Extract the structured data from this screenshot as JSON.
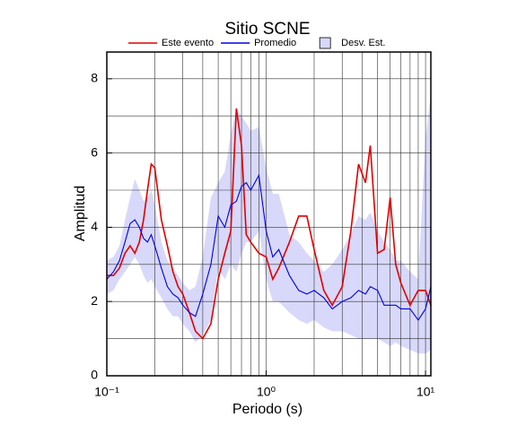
{
  "chart_data": {
    "type": "line",
    "title": "Sitio SCNE",
    "x_label": "Periodo (s)",
    "y_label": "Amplitud",
    "xscale": "log",
    "grid": true,
    "xlim": [
      0.1,
      10.8
    ],
    "ylim": [
      0,
      8.72
    ],
    "xticks": [
      {
        "value": 0.1,
        "label": "10⁻¹"
      },
      {
        "value": 1,
        "label": "10⁰"
      },
      {
        "value": 10,
        "label": "10¹"
      }
    ],
    "xminor": [
      0.2,
      0.3,
      0.4,
      0.5,
      0.6,
      0.7,
      0.8,
      0.9,
      2,
      3,
      4,
      5,
      6,
      7,
      8,
      9
    ],
    "yticks": [
      0,
      2,
      4,
      6,
      8
    ],
    "yminor": [
      1,
      3,
      5,
      7
    ],
    "x": [
      0.1,
      0.11,
      0.12,
      0.13,
      0.14,
      0.15,
      0.16,
      0.17,
      0.18,
      0.19,
      0.2,
      0.22,
      0.24,
      0.26,
      0.28,
      0.3,
      0.33,
      0.36,
      0.4,
      0.45,
      0.5,
      0.55,
      0.6,
      0.65,
      0.7,
      0.75,
      0.8,
      0.9,
      1.0,
      1.1,
      1.2,
      1.4,
      1.6,
      1.8,
      2.0,
      2.3,
      2.6,
      3.0,
      3.4,
      3.8,
      4.2,
      4.5,
      5.0,
      5.5,
      6.0,
      6.5,
      7.0,
      8.0,
      9.0,
      10.0,
      10.8
    ],
    "series": [
      {
        "name": "Este evento",
        "color": "#e00000",
        "values": [
          2.7,
          2.7,
          2.9,
          3.3,
          3.5,
          3.3,
          3.6,
          4.2,
          5.0,
          5.7,
          5.6,
          4.2,
          3.5,
          2.8,
          2.4,
          2.2,
          1.7,
          1.2,
          1.0,
          1.4,
          2.6,
          3.3,
          3.9,
          7.2,
          6.2,
          3.8,
          3.6,
          3.3,
          3.2,
          2.6,
          2.9,
          3.6,
          4.3,
          4.3,
          3.4,
          2.3,
          1.9,
          2.4,
          3.9,
          5.7,
          5.2,
          6.2,
          3.3,
          3.4,
          4.8,
          3.0,
          2.5,
          1.9,
          2.3,
          2.3,
          1.9
        ]
      },
      {
        "name": "Promedio",
        "color": "#0000dd",
        "values": [
          2.6,
          2.8,
          3.1,
          3.6,
          4.1,
          4.2,
          4.0,
          3.7,
          3.6,
          3.8,
          3.5,
          2.9,
          2.4,
          2.2,
          2.1,
          1.9,
          1.7,
          1.6,
          2.2,
          3.0,
          4.3,
          4.0,
          4.6,
          4.7,
          5.1,
          5.2,
          5.0,
          5.4,
          3.9,
          3.2,
          3.4,
          2.7,
          2.3,
          2.2,
          2.3,
          2.1,
          1.8,
          2.0,
          2.1,
          2.3,
          2.2,
          2.4,
          2.3,
          1.9,
          1.9,
          1.9,
          1.8,
          1.8,
          1.5,
          1.8,
          2.4
        ]
      },
      {
        "name": "Desv. Est.",
        "type": "band",
        "color": "#d8d8fa",
        "upper": [
          3.1,
          3.2,
          3.5,
          4.2,
          4.8,
          5.3,
          5.0,
          4.7,
          4.8,
          5.0,
          4.6,
          3.6,
          3.1,
          2.9,
          2.7,
          2.5,
          2.3,
          2.4,
          3.2,
          4.8,
          5.2,
          5.5,
          6.5,
          7.2,
          7.0,
          6.8,
          6.6,
          6.7,
          5.6,
          4.9,
          4.9,
          3.8,
          3.6,
          3.3,
          3.1,
          2.8,
          3.0,
          3.4,
          3.8,
          4.3,
          4.2,
          4.4,
          3.9,
          3.6,
          3.4,
          3.1,
          3.1,
          2.8,
          2.6,
          6.4,
          7.6
        ],
        "lower": [
          2.2,
          2.3,
          2.6,
          2.8,
          3.0,
          3.2,
          3.0,
          2.7,
          2.5,
          2.6,
          2.4,
          2.1,
          1.8,
          1.6,
          1.6,
          1.4,
          1.2,
          0.9,
          1.1,
          1.5,
          2.9,
          2.6,
          3.0,
          2.8,
          3.3,
          3.6,
          3.6,
          3.9,
          2.6,
          2.0,
          2.0,
          1.7,
          1.5,
          1.4,
          1.5,
          1.3,
          1.2,
          1.2,
          1.1,
          1.0,
          1.0,
          1.0,
          1.0,
          0.9,
          0.8,
          0.9,
          0.8,
          0.7,
          0.6,
          0.6,
          0.7
        ]
      }
    ]
  }
}
